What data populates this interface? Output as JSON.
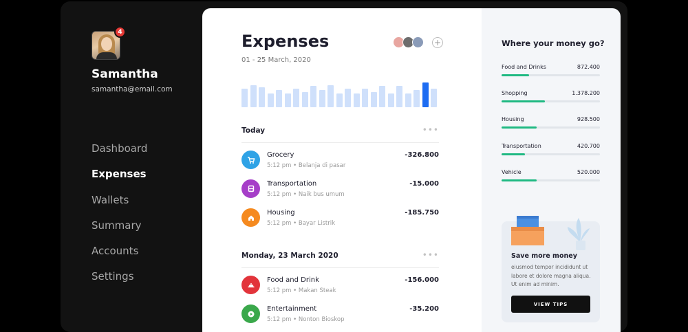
{
  "user": {
    "name": "Samantha",
    "email": "samantha@email.com",
    "notifications": "4"
  },
  "nav": [
    "Dashboard",
    "Expenses",
    "Wallets",
    "Summary",
    "Accounts",
    "Settings"
  ],
  "nav_active": "Expenses",
  "main": {
    "title": "Expenses",
    "date_range": "01 - 25 March, 2020",
    "add_person": "+",
    "bar_levels": [
      0.75,
      0.9,
      0.8,
      0.55,
      0.7,
      0.55,
      0.75,
      0.6,
      0.85,
      0.7,
      0.9,
      0.55,
      0.75,
      0.55,
      0.75,
      0.6,
      0.85,
      0.55,
      0.85,
      0.55,
      0.7,
      1.0,
      0.75
    ],
    "bar_highlight_index": 21,
    "sections": [
      {
        "title": "Today",
        "more": "•••",
        "transactions": [
          {
            "name": "Grocery",
            "time": "5:12 pm",
            "note": "Belanja di pasar",
            "amount": "-326.800",
            "icon": "cart-icon",
            "color": "#2fa3e6"
          },
          {
            "name": "Transportation",
            "time": "5:12 pm",
            "note": "Naik bus umum",
            "amount": "-15.000",
            "icon": "bus-icon",
            "color": "#a63ec8"
          },
          {
            "name": "Housing",
            "time": "5:12 pm",
            "note": "Bayar Listrik",
            "amount": "-185.750",
            "icon": "home-icon",
            "color": "#f58a1f"
          }
        ]
      },
      {
        "title": "Monday, 23 March 2020",
        "more": "•••",
        "transactions": [
          {
            "name": "Food and Drink",
            "time": "5:12 pm",
            "note": "Makan Steak",
            "amount": "-156.000",
            "icon": "food-icon",
            "color": "#e2343b"
          },
          {
            "name": "Entertainment",
            "time": "5:12 pm",
            "note": "Nonton Bioskop",
            "amount": "-35.200",
            "icon": "play-icon",
            "color": "#3aa84b"
          }
        ]
      }
    ]
  },
  "right": {
    "title": "Where your money go?",
    "categories": [
      {
        "name": "Food and Drinks",
        "amount": "872.400",
        "fill": 0.28
      },
      {
        "name": "Shopping",
        "amount": "1.378.200",
        "fill": 0.44
      },
      {
        "name": "Housing",
        "amount": "928.500",
        "fill": 0.36
      },
      {
        "name": "Transportation",
        "amount": "420.700",
        "fill": 0.24
      },
      {
        "name": "Vehicle",
        "amount": "520.000",
        "fill": 0.36
      }
    ],
    "promo": {
      "title": "Save more money",
      "text": "eiusmod tempor incididunt ut labore et dolore magna aliqua. Ut enim ad minim.",
      "button": "VIEW TIPS"
    }
  },
  "colors": {
    "accent": "#1d6cf2",
    "bar": "#cfe0fb",
    "progress": "#1fb982",
    "sidebar": "#121212"
  }
}
